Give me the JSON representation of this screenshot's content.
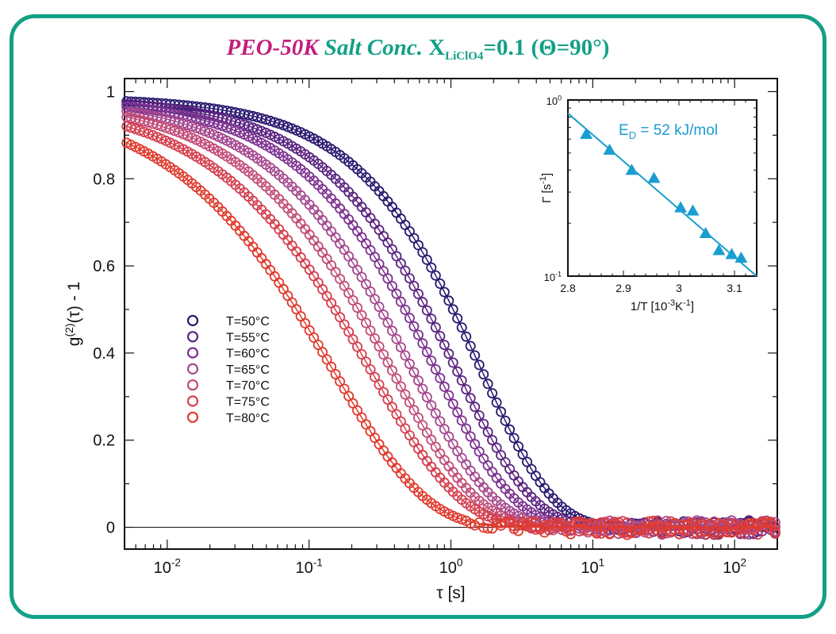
{
  "title": {
    "part1": "PEO-50K",
    "part2": "Salt Conc.",
    "x_main": "X",
    "x_sub": "LiClO4",
    "part3": "=0.1 (Θ=90°)"
  },
  "colors": {
    "frame": "#12a086",
    "title_magenta": "#c21e7e",
    "title_teal": "#12a086",
    "inset_accent": "#1a9ed0"
  },
  "chart_data": [
    {
      "type": "scatter",
      "role": "main",
      "xlabel": "τ [s]",
      "ylabel": "g(2)(τ) - 1",
      "xscale": "log",
      "xlim": [
        0.005,
        200
      ],
      "ylim": [
        -0.05,
        1.03
      ],
      "xticks": [
        0.01,
        0.1,
        1,
        10,
        100
      ],
      "xtick_labels": [
        {
          "base": "10",
          "exp": "-2"
        },
        {
          "base": "10",
          "exp": "-1"
        },
        {
          "base": "10",
          "exp": "0"
        },
        {
          "base": "10",
          "exp": "1"
        },
        {
          "base": "10",
          "exp": "2"
        }
      ],
      "yticks": [
        0,
        0.2,
        0.4,
        0.6,
        0.8,
        1
      ],
      "ytick_labels": [
        "0",
        "0.2",
        "0.4",
        "0.6",
        "0.8",
        "1"
      ],
      "zero_line": true,
      "legend_position": "left-middle",
      "series": [
        {
          "name": "T=50°C",
          "color": "#2a1870",
          "tau": 3.7,
          "beta": 0.85
        },
        {
          "name": "T=55°C",
          "color": "#5a2480",
          "tau": 2.6,
          "beta": 0.8
        },
        {
          "name": "T=60°C",
          "color": "#7d3290",
          "tau": 1.9,
          "beta": 0.78
        },
        {
          "name": "T=65°C",
          "color": "#a5488e",
          "tau": 1.35,
          "beta": 0.75
        },
        {
          "name": "T=70°C",
          "color": "#c24c78",
          "tau": 1.0,
          "beta": 0.72
        },
        {
          "name": "T=75°C",
          "color": "#d43f4e",
          "tau": 0.75,
          "beta": 0.68
        },
        {
          "name": "T=80°C",
          "color": "#e03a2e",
          "tau": 0.42,
          "beta": 0.66
        }
      ]
    },
    {
      "type": "scatter",
      "role": "inset",
      "xlabel": "1/T [10-3K-1]",
      "ylabel": "Γ [s-1]",
      "yscale": "log",
      "xlim": [
        2.8,
        3.14
      ],
      "ylim": [
        0.1,
        1
      ],
      "xticks": [
        2.8,
        2.9,
        3.0,
        3.1
      ],
      "xtick_labels": [
        "2.8",
        "2.9",
        "3",
        "3.1"
      ],
      "ytick_labels": [
        {
          "base": "10",
          "exp": "0"
        },
        {
          "base": "10",
          "exp": "-1"
        }
      ],
      "annotation": "ED = 52 kJ/mol",
      "marker": "triangle",
      "color": "#1a9ed0",
      "points": [
        [
          2.833,
          0.64
        ],
        [
          2.875,
          0.52
        ],
        [
          2.915,
          0.4
        ],
        [
          2.955,
          0.36
        ],
        [
          3.003,
          0.245
        ],
        [
          3.025,
          0.235
        ],
        [
          3.048,
          0.175
        ],
        [
          3.072,
          0.14
        ],
        [
          3.095,
          0.133
        ],
        [
          3.112,
          0.127
        ]
      ],
      "fit_line": [
        [
          2.8,
          0.84
        ],
        [
          3.14,
          0.1
        ]
      ]
    }
  ]
}
